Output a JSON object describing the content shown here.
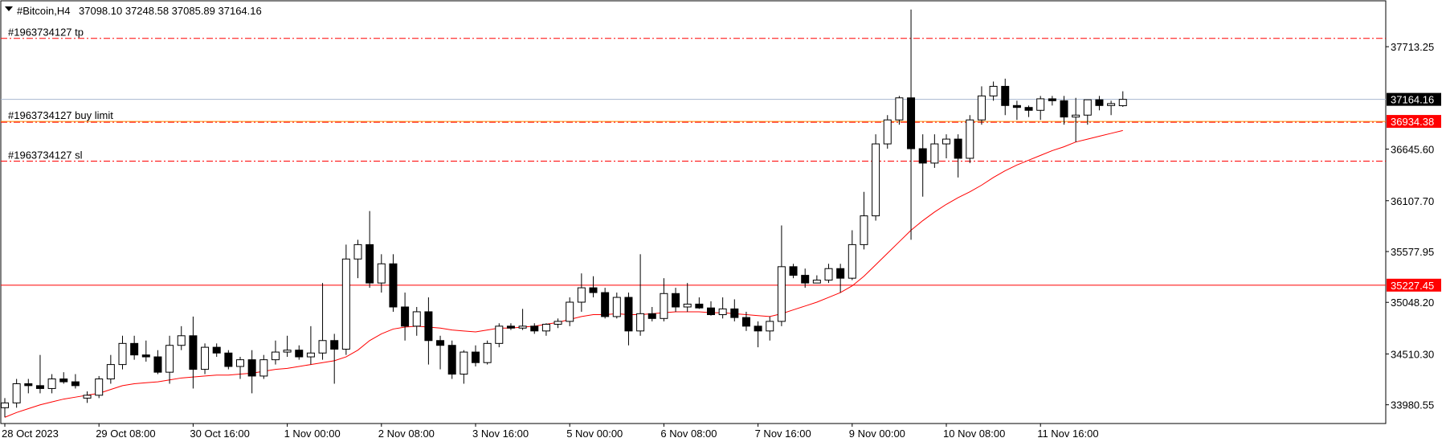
{
  "header": {
    "symbol_label": "#Bitcoin,H4",
    "ohlc_text": "37098.10 37248.58 37085.89 37164.16",
    "menu_icon": "triangle-down-icon"
  },
  "colors": {
    "background": "#ffffff",
    "frame": "#000000",
    "bull_candle_fill": "#ffffff",
    "bear_candle_fill": "#000000",
    "candle_outline": "#000000",
    "moving_average": "#ff0000",
    "order_line": "#ff0000",
    "bid_line": "#a8b8d0",
    "buy_limit_line": "#ff8c00",
    "price_tag_current_bg": "#000000",
    "price_tag_order_bg": "#ff0000"
  },
  "chart_data": {
    "type": "candlestick",
    "symbol": "#Bitcoin",
    "timeframe": "H4",
    "ylim": [
      33760,
      38200
    ],
    "y_ticks": [
      "37713.25",
      "36645.60",
      "36107.70",
      "35577.95",
      "35048.20",
      "34510.30",
      "33980.55"
    ],
    "x_ticks": [
      {
        "label": "28 Oct 2023",
        "index": 0
      },
      {
        "label": "29 Oct 08:00",
        "index": 8
      },
      {
        "label": "30 Oct 16:00",
        "index": 16
      },
      {
        "label": "1 Nov 00:00",
        "index": 24
      },
      {
        "label": "2 Nov 08:00",
        "index": 32
      },
      {
        "label": "3 Nov 16:00",
        "index": 40
      },
      {
        "label": "5 Nov 00:00",
        "index": 48
      },
      {
        "label": "6 Nov 08:00",
        "index": 56
      },
      {
        "label": "7 Nov 16:00",
        "index": 64
      },
      {
        "label": "9 Nov 00:00",
        "index": 72
      },
      {
        "label": "10 Nov 08:00",
        "index": 80
      },
      {
        "label": "11 Nov 16:00",
        "index": 88
      }
    ],
    "candles": [
      {
        "o": 33950,
        "h": 34050,
        "l": 33850,
        "c": 34000
      },
      {
        "o": 34000,
        "h": 34250,
        "l": 33950,
        "c": 34200
      },
      {
        "o": 34200,
        "h": 34250,
        "l": 34100,
        "c": 34180
      },
      {
        "o": 34180,
        "h": 34500,
        "l": 34100,
        "c": 34150
      },
      {
        "o": 34150,
        "h": 34300,
        "l": 34100,
        "c": 34250
      },
      {
        "o": 34250,
        "h": 34320,
        "l": 34200,
        "c": 34220
      },
      {
        "o": 34220,
        "h": 34300,
        "l": 34150,
        "c": 34180
      },
      {
        "o": 34050,
        "h": 34120,
        "l": 34000,
        "c": 34080
      },
      {
        "o": 34080,
        "h": 34280,
        "l": 34050,
        "c": 34250
      },
      {
        "o": 34250,
        "h": 34500,
        "l": 34200,
        "c": 34400
      },
      {
        "o": 34400,
        "h": 34700,
        "l": 34350,
        "c": 34620
      },
      {
        "o": 34620,
        "h": 34700,
        "l": 34450,
        "c": 34500
      },
      {
        "o": 34500,
        "h": 34650,
        "l": 34430,
        "c": 34480
      },
      {
        "o": 34480,
        "h": 34550,
        "l": 34300,
        "c": 34320
      },
      {
        "o": 34320,
        "h": 34700,
        "l": 34200,
        "c": 34600
      },
      {
        "o": 34600,
        "h": 34800,
        "l": 34550,
        "c": 34700
      },
      {
        "o": 34700,
        "h": 34900,
        "l": 34150,
        "c": 34350
      },
      {
        "o": 34350,
        "h": 34620,
        "l": 34300,
        "c": 34580
      },
      {
        "o": 34580,
        "h": 34620,
        "l": 34480,
        "c": 34520
      },
      {
        "o": 34520,
        "h": 34550,
        "l": 34350,
        "c": 34380
      },
      {
        "o": 34380,
        "h": 34480,
        "l": 34250,
        "c": 34450
      },
      {
        "o": 34450,
        "h": 34550,
        "l": 34100,
        "c": 34280
      },
      {
        "o": 34280,
        "h": 34500,
        "l": 34250,
        "c": 34450
      },
      {
        "o": 34450,
        "h": 34650,
        "l": 34400,
        "c": 34530
      },
      {
        "o": 34530,
        "h": 34700,
        "l": 34480,
        "c": 34550
      },
      {
        "o": 34550,
        "h": 34600,
        "l": 34450,
        "c": 34480
      },
      {
        "o": 34480,
        "h": 34800,
        "l": 34400,
        "c": 34520
      },
      {
        "o": 34520,
        "h": 35250,
        "l": 34450,
        "c": 34650
      },
      {
        "o": 34650,
        "h": 34720,
        "l": 34200,
        "c": 34560
      },
      {
        "o": 34560,
        "h": 35650,
        "l": 34500,
        "c": 35500
      },
      {
        "o": 35500,
        "h": 35700,
        "l": 35300,
        "c": 35650
      },
      {
        "o": 35650,
        "h": 36000,
        "l": 35200,
        "c": 35250
      },
      {
        "o": 35250,
        "h": 35550,
        "l": 35150,
        "c": 35450
      },
      {
        "o": 35450,
        "h": 35550,
        "l": 34950,
        "c": 35000
      },
      {
        "o": 35000,
        "h": 35150,
        "l": 34650,
        "c": 34800
      },
      {
        "o": 34800,
        "h": 35000,
        "l": 34700,
        "c": 34950
      },
      {
        "o": 34950,
        "h": 35100,
        "l": 34400,
        "c": 34650
      },
      {
        "o": 34650,
        "h": 34700,
        "l": 34350,
        "c": 34600
      },
      {
        "o": 34600,
        "h": 34650,
        "l": 34250,
        "c": 34300
      },
      {
        "o": 34300,
        "h": 34550,
        "l": 34200,
        "c": 34530
      },
      {
        "o": 34530,
        "h": 34600,
        "l": 34380,
        "c": 34420
      },
      {
        "o": 34420,
        "h": 34650,
        "l": 34400,
        "c": 34620
      },
      {
        "o": 34620,
        "h": 34830,
        "l": 34580,
        "c": 34800
      },
      {
        "o": 34800,
        "h": 34830,
        "l": 34760,
        "c": 34780
      },
      {
        "o": 34780,
        "h": 34980,
        "l": 34760,
        "c": 34800
      },
      {
        "o": 34800,
        "h": 34830,
        "l": 34720,
        "c": 34750
      },
      {
        "o": 34750,
        "h": 34830,
        "l": 34700,
        "c": 34820
      },
      {
        "o": 34820,
        "h": 34880,
        "l": 34780,
        "c": 34850
      },
      {
        "o": 34850,
        "h": 35100,
        "l": 34800,
        "c": 35050
      },
      {
        "o": 35050,
        "h": 35350,
        "l": 34950,
        "c": 35200
      },
      {
        "o": 35200,
        "h": 35320,
        "l": 35100,
        "c": 35150
      },
      {
        "o": 35150,
        "h": 35200,
        "l": 34880,
        "c": 34900
      },
      {
        "o": 34900,
        "h": 35150,
        "l": 34880,
        "c": 35100
      },
      {
        "o": 35100,
        "h": 35150,
        "l": 34600,
        "c": 34750
      },
      {
        "o": 34750,
        "h": 35550,
        "l": 34700,
        "c": 34930
      },
      {
        "o": 34930,
        "h": 35000,
        "l": 34850,
        "c": 34880
      },
      {
        "o": 34880,
        "h": 35300,
        "l": 34850,
        "c": 35140
      },
      {
        "o": 35140,
        "h": 35200,
        "l": 34950,
        "c": 35000
      },
      {
        "o": 35000,
        "h": 35250,
        "l": 34950,
        "c": 35030
      },
      {
        "o": 35030,
        "h": 35100,
        "l": 34980,
        "c": 34990
      },
      {
        "o": 34990,
        "h": 35060,
        "l": 34910,
        "c": 34920
      },
      {
        "o": 34920,
        "h": 35100,
        "l": 34880,
        "c": 34980
      },
      {
        "o": 34980,
        "h": 35080,
        "l": 34850,
        "c": 34890
      },
      {
        "o": 34890,
        "h": 34950,
        "l": 34750,
        "c": 34800
      },
      {
        "o": 34800,
        "h": 34850,
        "l": 34580,
        "c": 34750
      },
      {
        "o": 34750,
        "h": 34900,
        "l": 34650,
        "c": 34850
      },
      {
        "o": 34850,
        "h": 35850,
        "l": 34800,
        "c": 35420
      },
      {
        "o": 35420,
        "h": 35450,
        "l": 35300,
        "c": 35330
      },
      {
        "o": 35330,
        "h": 35400,
        "l": 35200,
        "c": 35250
      },
      {
        "o": 35250,
        "h": 35330,
        "l": 35250,
        "c": 35280
      },
      {
        "o": 35280,
        "h": 35450,
        "l": 35250,
        "c": 35400
      },
      {
        "o": 35400,
        "h": 35450,
        "l": 35150,
        "c": 35300
      },
      {
        "o": 35300,
        "h": 35800,
        "l": 35280,
        "c": 35650
      },
      {
        "o": 35650,
        "h": 36200,
        "l": 35600,
        "c": 35950
      },
      {
        "o": 35950,
        "h": 36800,
        "l": 35900,
        "c": 36700
      },
      {
        "o": 36700,
        "h": 37000,
        "l": 36650,
        "c": 36950
      },
      {
        "o": 36950,
        "h": 37200,
        "l": 36900,
        "c": 37180
      },
      {
        "o": 37180,
        "h": 38100,
        "l": 35700,
        "c": 36650
      },
      {
        "o": 36650,
        "h": 36800,
        "l": 36150,
        "c": 36500
      },
      {
        "o": 36500,
        "h": 36800,
        "l": 36450,
        "c": 36700
      },
      {
        "o": 36700,
        "h": 36800,
        "l": 36550,
        "c": 36750
      },
      {
        "o": 36750,
        "h": 36800,
        "l": 36350,
        "c": 36550
      },
      {
        "o": 36550,
        "h": 37000,
        "l": 36500,
        "c": 36950
      },
      {
        "o": 36950,
        "h": 37300,
        "l": 36900,
        "c": 37200
      },
      {
        "o": 37200,
        "h": 37350,
        "l": 37150,
        "c": 37300
      },
      {
        "o": 37300,
        "h": 37380,
        "l": 37000,
        "c": 37100
      },
      {
        "o": 37100,
        "h": 37150,
        "l": 36950,
        "c": 37080
      },
      {
        "o": 37080,
        "h": 37100,
        "l": 36980,
        "c": 37050
      },
      {
        "o": 37050,
        "h": 37200,
        "l": 36950,
        "c": 37170
      },
      {
        "o": 37170,
        "h": 37200,
        "l": 37100,
        "c": 37150
      },
      {
        "o": 37150,
        "h": 37200,
        "l": 36900,
        "c": 36980
      },
      {
        "o": 36980,
        "h": 37180,
        "l": 36720,
        "c": 37000
      },
      {
        "o": 37000,
        "h": 37150,
        "l": 36900,
        "c": 37160
      },
      {
        "o": 37160,
        "h": 37200,
        "l": 37050,
        "c": 37100
      },
      {
        "o": 37100,
        "h": 37150,
        "l": 37000,
        "c": 37120
      },
      {
        "o": 37098.1,
        "h": 37248.58,
        "l": 37085.89,
        "c": 37164.16
      }
    ],
    "moving_average": [
      33850,
      33900,
      33940,
      33980,
      34010,
      34040,
      34060,
      34080,
      34100,
      34140,
      34180,
      34200,
      34210,
      34220,
      34240,
      34260,
      34270,
      34280,
      34290,
      34290,
      34300,
      34310,
      34330,
      34350,
      34360,
      34380,
      34400,
      34420,
      34440,
      34480,
      34550,
      34650,
      34720,
      34770,
      34790,
      34800,
      34790,
      34780,
      34760,
      34750,
      34740,
      34760,
      34780,
      34780,
      34790,
      34800,
      34820,
      34840,
      34870,
      34900,
      34920,
      34920,
      34930,
      34920,
      34920,
      34930,
      34940,
      34950,
      34950,
      34950,
      34940,
      34940,
      34930,
      34920,
      34910,
      34900,
      34930,
      34970,
      35010,
      35050,
      35100,
      35150,
      35220,
      35320,
      35440,
      35560,
      35680,
      35800,
      35900,
      35990,
      36070,
      36140,
      36200,
      36270,
      36350,
      36420,
      36480,
      36530,
      36580,
      36630,
      36670,
      36720,
      36750,
      36780,
      36810,
      36840
    ],
    "levels": {
      "current_price": 37164.16,
      "current_price_label": "37164.16",
      "take_profit": 37800,
      "take_profit_label": "#1963734127 tp",
      "buy_limit": 36934.38,
      "buy_limit_label": "#1963734127 buy limit",
      "buy_limit_price_label": "36934.38",
      "stop_loss": 36520,
      "stop_loss_label": "#1963734127 sl",
      "horizontal_level": 35227.45,
      "horizontal_level_label": "35227.45"
    },
    "grid": false
  }
}
